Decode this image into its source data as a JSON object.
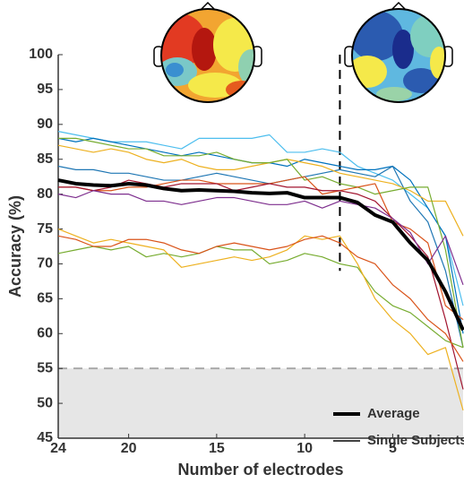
{
  "chart_data": {
    "type": "line",
    "xlabel": "Number of electrodes",
    "ylabel": "Accuracy (%)",
    "x": [
      24,
      23,
      22,
      21,
      20,
      19,
      18,
      17,
      16,
      15,
      14,
      13,
      12,
      11,
      10,
      9,
      8,
      7,
      6,
      5,
      4,
      3,
      2,
      1
    ],
    "xlim": [
      24,
      1
    ],
    "xticks": [
      24,
      20,
      15,
      10,
      5
    ],
    "ylim": [
      45,
      100
    ],
    "yticks": [
      45,
      50,
      55,
      60,
      65,
      70,
      75,
      80,
      85,
      90,
      95,
      100
    ],
    "chance_level": 55,
    "marker_x": 8,
    "legend": "lower right",
    "series": [
      {
        "name": "Average",
        "color": "#000000",
        "values": [
          82,
          81.5,
          81.3,
          81.2,
          81.5,
          81.3,
          80.8,
          80.5,
          80.6,
          80.5,
          80.4,
          80.2,
          80.1,
          80.2,
          79.5,
          79.5,
          79.5,
          78.8,
          77,
          76,
          73,
          70.5,
          66,
          60.5
        ]
      },
      {
        "name": "Single Subjects",
        "color": "#000000",
        "subjects": [
          {
            "color": "#4dbeee",
            "values": [
              89,
              88.5,
              88,
              87.5,
              87.5,
              87.5,
              87,
              86.5,
              88,
              88,
              88,
              88,
              88.5,
              86,
              86,
              86.5,
              86,
              84,
              83,
              82,
              80,
              78,
              74,
              64
            ]
          },
          {
            "color": "#0072bd",
            "values": [
              88,
              87.5,
              88,
              87.5,
              87,
              86.5,
              86,
              85.5,
              86,
              85.5,
              85,
              84.5,
              84.5,
              84,
              85,
              84.5,
              84,
              83.5,
              83.5,
              84,
              82,
              78,
              74,
              60
            ]
          },
          {
            "color": "#1f77b4",
            "values": [
              84,
              83.5,
              83.5,
              83,
              83,
              82.5,
              82,
              82,
              82.5,
              83,
              82.5,
              82,
              81.5,
              82,
              82.5,
              83,
              83.5,
              83,
              82.5,
              84,
              79,
              76,
              69,
              58
            ]
          },
          {
            "color": "#edb120",
            "values": [
              87,
              86.5,
              86,
              86.5,
              86,
              85,
              84.5,
              85,
              84,
              83.5,
              83.5,
              84,
              84.5,
              85,
              84.5,
              84,
              83,
              82.5,
              82,
              81.5,
              80.5,
              79,
              79,
              74
            ]
          },
          {
            "color": "#77ac30",
            "values": [
              88,
              88,
              87.5,
              87,
              86.5,
              86.5,
              85.5,
              85.5,
              85.5,
              86,
              85,
              84.5,
              84.5,
              85,
              82,
              82.5,
              81.5,
              81,
              80,
              80.5,
              81,
              81,
              72,
              58
            ]
          },
          {
            "color": "#d95319",
            "values": [
              81,
              81,
              80.5,
              80.5,
              81,
              81,
              81.5,
              82,
              82,
              81.5,
              81.5,
              81.5,
              81.5,
              82,
              82.5,
              80,
              80.5,
              81,
              81.5,
              76,
              75,
              73,
              64,
              62
            ]
          },
          {
            "color": "#a2142f",
            "values": [
              81,
              81,
              80.5,
              81,
              82,
              81.5,
              81,
              81.5,
              81.5,
              81.5,
              80.5,
              81,
              81.5,
              81,
              81,
              80.5,
              80.5,
              80,
              79,
              76.5,
              74,
              71,
              62,
              52
            ]
          },
          {
            "color": "#7e2f8e",
            "values": [
              80,
              79.5,
              80.5,
              80,
              80,
              79,
              79,
              78.5,
              79,
              79.5,
              79.5,
              79,
              78.5,
              78.5,
              79,
              78,
              79,
              78.5,
              78,
              76.5,
              74.5,
              70,
              74,
              67
            ]
          },
          {
            "color": "#77ac30",
            "values": [
              71.5,
              72,
              72.5,
              72,
              72.5,
              71,
              71.5,
              71,
              71.5,
              72.5,
              72,
              72,
              70,
              70.5,
              71.5,
              71,
              70,
              69.5,
              66,
              64,
              63,
              61,
              59,
              58
            ]
          },
          {
            "color": "#edb120",
            "values": [
              75,
              74,
              73,
              73.5,
              73,
              72.5,
              72,
              69.5,
              70,
              70.5,
              71,
              70.5,
              71,
              72,
              74,
              73.5,
              74,
              70,
              65,
              62,
              60,
              57,
              58,
              49
            ]
          },
          {
            "color": "#d95319",
            "values": [
              74,
              73.5,
              72.5,
              72.5,
              73.5,
              73.5,
              73,
              72,
              71.5,
              72.5,
              73,
              72.5,
              72,
              72.5,
              73.5,
              74,
              73,
              71,
              70,
              67,
              65,
              62,
              60,
              56
            ]
          }
        ]
      }
    ]
  }
}
